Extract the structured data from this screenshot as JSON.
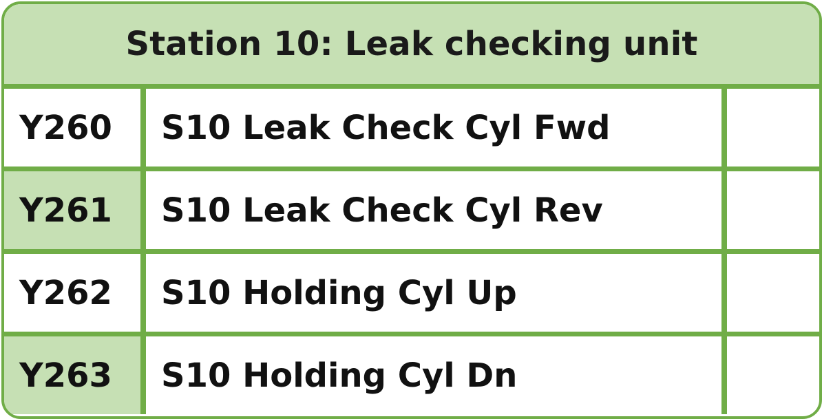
{
  "title": "Station 10: Leak checking unit",
  "colors": {
    "border": "#70ad47",
    "header_fill": "#c6e0b4",
    "shaded_cell": "#c6e0b4",
    "text": "#111111"
  },
  "rows": [
    {
      "code": "Y260",
      "description": "S10 Leak Check Cyl Fwd",
      "extra": "",
      "shaded": false
    },
    {
      "code": "Y261",
      "description": "S10 Leak Check Cyl Rev",
      "extra": "",
      "shaded": true
    },
    {
      "code": "Y262",
      "description": "S10 Holding Cyl Up",
      "extra": "",
      "shaded": false
    },
    {
      "code": "Y263",
      "description": "S10 Holding Cyl Dn",
      "extra": "",
      "shaded": true
    }
  ]
}
